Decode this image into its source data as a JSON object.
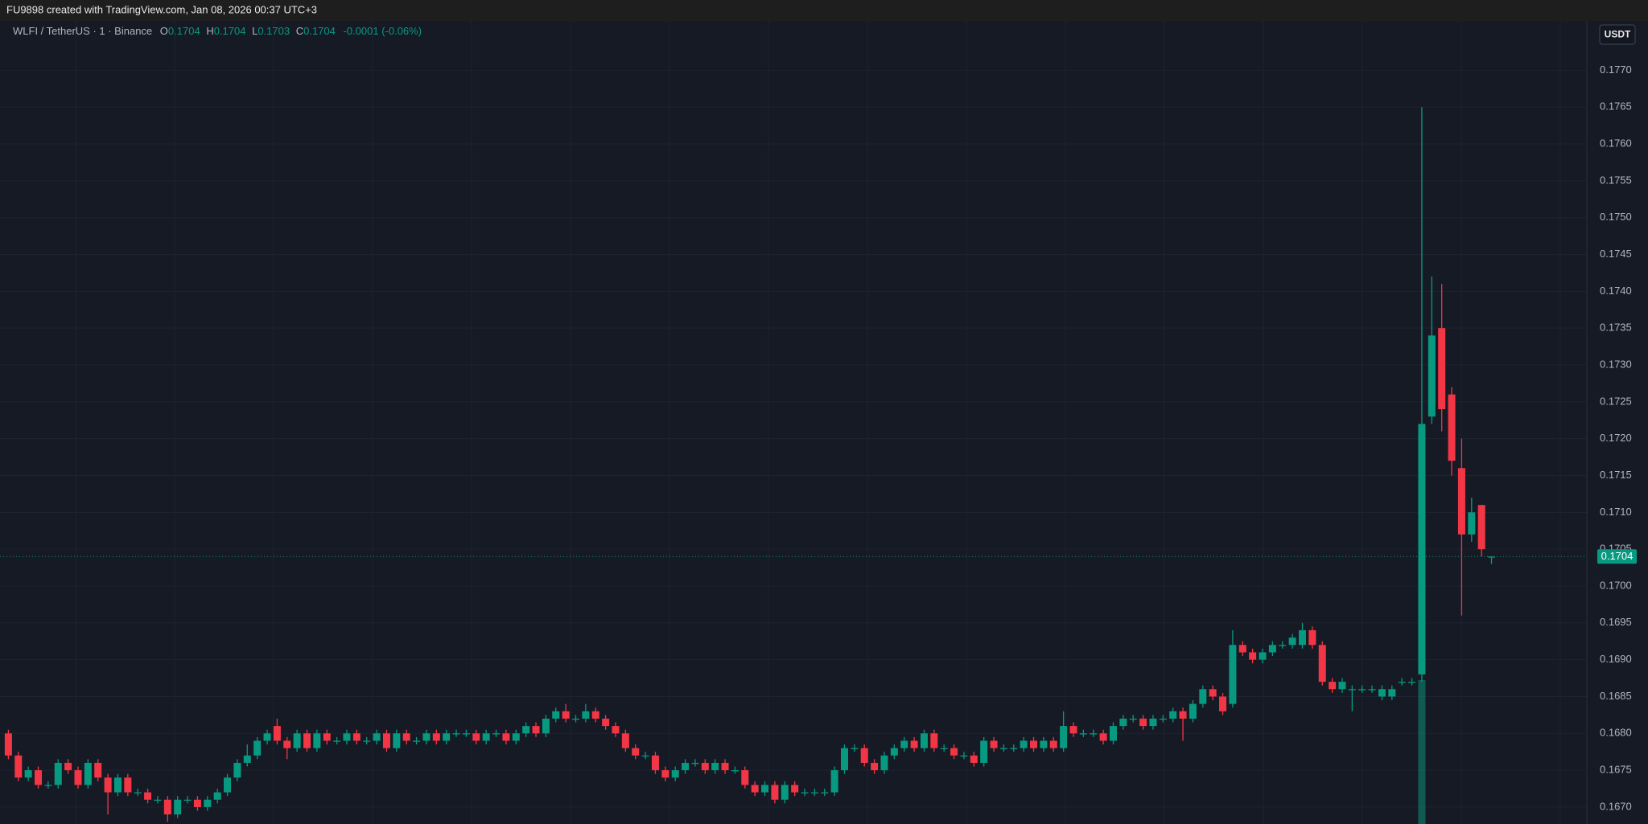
{
  "header": "FU9898 created with TradingView.com, Jan 08, 2026 00:37 UTC+3",
  "legend": {
    "symbol": "WLFI / TetherUS · 1 · Binance",
    "o_label": "O",
    "o": "0.1704",
    "h_label": "H",
    "h": "0.1704",
    "l_label": "L",
    "l": "0.1703",
    "c_label": "C",
    "c": "0.1704",
    "change": "-0.0001 (-0.06%)"
  },
  "currency_button": "USDT",
  "chart_data": {
    "type": "candlestick",
    "up_color": "#089981",
    "down_color": "#f23645",
    "grid": true,
    "ylim": [
      0.16677,
      0.17767
    ],
    "yticks": [
      {
        "value": 0.167,
        "label": "0.1670"
      },
      0.1675,
      {
        "value": 0.168,
        "label": "0.1680"
      },
      0.1685,
      {
        "value": 0.169,
        "label": "0.1690"
      },
      0.1695,
      {
        "value": 0.17,
        "label": "0.1700"
      },
      0.1705,
      {
        "value": 0.171,
        "label": "0.1710"
      },
      0.1715,
      {
        "value": 0.172,
        "label": "0.1720"
      },
      0.1725,
      {
        "value": 0.173,
        "label": "0.1730"
      },
      0.1735,
      {
        "value": 0.174,
        "label": "0.1740"
      },
      0.1745,
      {
        "value": 0.175,
        "label": "0.1750"
      },
      0.1755,
      {
        "value": 0.176,
        "label": "0.1760"
      },
      0.1765,
      {
        "value": 0.177,
        "label": "0.1770"
      }
    ],
    "last_price": 0.1704,
    "candles": [
      [
        0.168,
        0.16805,
        0.16765,
        0.1677
      ],
      [
        0.1677,
        0.16775,
        0.16735,
        0.1674
      ],
      [
        0.1674,
        0.16755,
        0.16735,
        0.1675
      ],
      [
        0.1675,
        0.16755,
        0.16725,
        0.1673
      ],
      [
        0.1673,
        0.16735,
        0.16725,
        0.1673
      ],
      [
        0.1673,
        0.16765,
        0.16725,
        0.1676
      ],
      [
        0.1676,
        0.16765,
        0.16745,
        0.1675
      ],
      [
        0.1675,
        0.16755,
        0.16725,
        0.1673
      ],
      [
        0.1673,
        0.16765,
        0.16725,
        0.1676
      ],
      [
        0.1676,
        0.16765,
        0.16735,
        0.1674
      ],
      [
        0.1674,
        0.16745,
        0.1669,
        0.1672
      ],
      [
        0.1672,
        0.16745,
        0.16715,
        0.1674
      ],
      [
        0.1674,
        0.16745,
        0.16715,
        0.1672
      ],
      [
        0.1672,
        0.16725,
        0.16715,
        0.1672
      ],
      [
        0.1672,
        0.16725,
        0.16705,
        0.1671
      ],
      [
        0.1671,
        0.16715,
        0.16705,
        0.1671
      ],
      [
        0.1671,
        0.16715,
        0.1668,
        0.1669
      ],
      [
        0.1669,
        0.16715,
        0.16685,
        0.1671
      ],
      [
        0.1671,
        0.16715,
        0.16705,
        0.1671
      ],
      [
        0.1671,
        0.16715,
        0.16695,
        0.167
      ],
      [
        0.167,
        0.16715,
        0.16695,
        0.1671
      ],
      [
        0.1671,
        0.16725,
        0.16705,
        0.1672
      ],
      [
        0.1672,
        0.16745,
        0.16715,
        0.1674
      ],
      [
        0.1674,
        0.16765,
        0.16735,
        0.1676
      ],
      [
        0.1676,
        0.16785,
        0.16755,
        0.1677
      ],
      [
        0.1677,
        0.16795,
        0.16765,
        0.1679
      ],
      [
        0.1679,
        0.16805,
        0.16785,
        0.168
      ],
      [
        0.1681,
        0.1682,
        0.16785,
        0.1679
      ],
      [
        0.1679,
        0.16795,
        0.16765,
        0.1678
      ],
      [
        0.1678,
        0.16805,
        0.16775,
        0.168
      ],
      [
        0.168,
        0.16805,
        0.16775,
        0.1678
      ],
      [
        0.1678,
        0.16805,
        0.16775,
        0.168
      ],
      [
        0.168,
        0.16805,
        0.16785,
        0.1679
      ],
      [
        0.1679,
        0.16795,
        0.16785,
        0.1679
      ],
      [
        0.1679,
        0.16805,
        0.16785,
        0.168
      ],
      [
        0.168,
        0.16805,
        0.16785,
        0.1679
      ],
      [
        0.1679,
        0.16795,
        0.16785,
        0.1679
      ],
      [
        0.1679,
        0.16805,
        0.16785,
        0.168
      ],
      [
        0.168,
        0.16805,
        0.16775,
        0.1678
      ],
      [
        0.1678,
        0.16805,
        0.16775,
        0.168
      ],
      [
        0.168,
        0.16805,
        0.16785,
        0.1679
      ],
      [
        0.1679,
        0.16795,
        0.16785,
        0.1679
      ],
      [
        0.1679,
        0.16805,
        0.16785,
        0.168
      ],
      [
        0.168,
        0.16805,
        0.16785,
        0.1679
      ],
      [
        0.1679,
        0.16805,
        0.16785,
        0.168
      ],
      [
        0.168,
        0.16805,
        0.16795,
        0.168
      ],
      [
        0.168,
        0.16805,
        0.16795,
        0.168
      ],
      [
        0.168,
        0.16805,
        0.16785,
        0.1679
      ],
      [
        0.1679,
        0.16805,
        0.16785,
        0.168
      ],
      [
        0.168,
        0.16805,
        0.16795,
        0.168
      ],
      [
        0.168,
        0.16805,
        0.16785,
        0.1679
      ],
      [
        0.1679,
        0.16805,
        0.16785,
        0.168
      ],
      [
        0.168,
        0.16815,
        0.16795,
        0.1681
      ],
      [
        0.1681,
        0.16815,
        0.16795,
        0.168
      ],
      [
        0.168,
        0.16825,
        0.16795,
        0.1682
      ],
      [
        0.1682,
        0.16835,
        0.16815,
        0.1683
      ],
      [
        0.1683,
        0.1684,
        0.16815,
        0.1682
      ],
      [
        0.1682,
        0.16825,
        0.16815,
        0.1682
      ],
      [
        0.1682,
        0.1684,
        0.16815,
        0.1683
      ],
      [
        0.1683,
        0.16835,
        0.16815,
        0.1682
      ],
      [
        0.1682,
        0.16825,
        0.16805,
        0.1681
      ],
      [
        0.1681,
        0.16815,
        0.16795,
        0.168
      ],
      [
        0.168,
        0.16805,
        0.16775,
        0.1678
      ],
      [
        0.1678,
        0.16785,
        0.16765,
        0.1677
      ],
      [
        0.1677,
        0.16775,
        0.16765,
        0.1677
      ],
      [
        0.1677,
        0.16775,
        0.16745,
        0.1675
      ],
      [
        0.1675,
        0.16755,
        0.16735,
        0.1674
      ],
      [
        0.1674,
        0.16755,
        0.16735,
        0.1675
      ],
      [
        0.1675,
        0.16765,
        0.16745,
        0.1676
      ],
      [
        0.1676,
        0.16765,
        0.16755,
        0.1676
      ],
      [
        0.1676,
        0.16765,
        0.16745,
        0.1675
      ],
      [
        0.1675,
        0.16765,
        0.16745,
        0.1676
      ],
      [
        0.1676,
        0.16765,
        0.16745,
        0.1675
      ],
      [
        0.1675,
        0.16755,
        0.16745,
        0.1675
      ],
      [
        0.1675,
        0.16755,
        0.16725,
        0.1673
      ],
      [
        0.1673,
        0.16735,
        0.16715,
        0.1672
      ],
      [
        0.1672,
        0.16735,
        0.16715,
        0.1673
      ],
      [
        0.1673,
        0.16735,
        0.16705,
        0.1671
      ],
      [
        0.1671,
        0.16735,
        0.16705,
        0.1673
      ],
      [
        0.1673,
        0.16735,
        0.16715,
        0.1672
      ],
      [
        0.1672,
        0.16725,
        0.16715,
        0.1672
      ],
      [
        0.1672,
        0.16725,
        0.16715,
        0.1672
      ],
      [
        0.1672,
        0.16725,
        0.16715,
        0.1672
      ],
      [
        0.1672,
        0.16755,
        0.16715,
        0.1675
      ],
      [
        0.1675,
        0.16785,
        0.16745,
        0.1678
      ],
      [
        0.1678,
        0.16785,
        0.16775,
        0.1678
      ],
      [
        0.1678,
        0.16785,
        0.16755,
        0.1676
      ],
      [
        0.1676,
        0.16765,
        0.16745,
        0.1675
      ],
      [
        0.1675,
        0.16775,
        0.16745,
        0.1677
      ],
      [
        0.1677,
        0.16785,
        0.16765,
        0.1678
      ],
      [
        0.1678,
        0.16795,
        0.16775,
        0.1679
      ],
      [
        0.1679,
        0.16795,
        0.16775,
        0.1678
      ],
      [
        0.1678,
        0.16805,
        0.16775,
        0.168
      ],
      [
        0.168,
        0.16805,
        0.16775,
        0.1678
      ],
      [
        0.1678,
        0.16785,
        0.16775,
        0.1678
      ],
      [
        0.1678,
        0.16785,
        0.16765,
        0.1677
      ],
      [
        0.1677,
        0.16775,
        0.16765,
        0.1677
      ],
      [
        0.1677,
        0.16775,
        0.16755,
        0.1676
      ],
      [
        0.1676,
        0.16795,
        0.16755,
        0.1679
      ],
      [
        0.1679,
        0.16795,
        0.16775,
        0.1678
      ],
      [
        0.1678,
        0.16785,
        0.16775,
        0.1678
      ],
      [
        0.1678,
        0.16785,
        0.16775,
        0.1678
      ],
      [
        0.1678,
        0.16795,
        0.16775,
        0.1679
      ],
      [
        0.1679,
        0.16795,
        0.16775,
        0.1678
      ],
      [
        0.1678,
        0.16795,
        0.16775,
        0.1679
      ],
      [
        0.1679,
        0.16795,
        0.16775,
        0.1678
      ],
      [
        0.1678,
        0.1683,
        0.16775,
        0.1681
      ],
      [
        0.1681,
        0.16815,
        0.16795,
        0.168
      ],
      [
        0.168,
        0.16805,
        0.16795,
        0.168
      ],
      [
        0.168,
        0.16805,
        0.16795,
        0.168
      ],
      [
        0.168,
        0.16805,
        0.16785,
        0.1679
      ],
      [
        0.1679,
        0.16815,
        0.16785,
        0.1681
      ],
      [
        0.1681,
        0.16825,
        0.16805,
        0.1682
      ],
      [
        0.1682,
        0.16825,
        0.16815,
        0.1682
      ],
      [
        0.1682,
        0.16825,
        0.16805,
        0.1681
      ],
      [
        0.1681,
        0.16825,
        0.16805,
        0.1682
      ],
      [
        0.1682,
        0.16825,
        0.16815,
        0.1682
      ],
      [
        0.1682,
        0.16835,
        0.16815,
        0.1683
      ],
      [
        0.1683,
        0.16835,
        0.1679,
        0.1682
      ],
      [
        0.1682,
        0.16845,
        0.16815,
        0.1684
      ],
      [
        0.1684,
        0.16865,
        0.16835,
        0.1686
      ],
      [
        0.1686,
        0.16865,
        0.16845,
        0.1685
      ],
      [
        0.1685,
        0.16855,
        0.16825,
        0.1683
      ],
      [
        0.1684,
        0.1694,
        0.16835,
        0.1692
      ],
      [
        0.1692,
        0.16925,
        0.16905,
        0.1691
      ],
      [
        0.1691,
        0.16915,
        0.16895,
        0.169
      ],
      [
        0.169,
        0.16915,
        0.16895,
        0.1691
      ],
      [
        0.1691,
        0.16925,
        0.16905,
        0.1692
      ],
      [
        0.1692,
        0.16925,
        0.16915,
        0.1692
      ],
      [
        0.1692,
        0.16935,
        0.16915,
        0.1693
      ],
      [
        0.1692,
        0.1695,
        0.16915,
        0.1694
      ],
      [
        0.1694,
        0.16945,
        0.16915,
        0.1692
      ],
      [
        0.1692,
        0.16925,
        0.16865,
        0.1687
      ],
      [
        0.1687,
        0.16875,
        0.16855,
        0.1686
      ],
      [
        0.1686,
        0.16875,
        0.16855,
        0.1687
      ],
      [
        0.1686,
        0.16865,
        0.1683,
        0.1686
      ],
      [
        0.1686,
        0.16865,
        0.16855,
        0.1686
      ],
      [
        0.1686,
        0.16865,
        0.16855,
        0.1686
      ],
      [
        0.1685,
        0.16865,
        0.16845,
        0.1686
      ],
      [
        0.1685,
        0.16865,
        0.16845,
        0.1686
      ],
      [
        0.1687,
        0.16875,
        0.16865,
        0.1687
      ],
      [
        0.1687,
        0.16875,
        0.16865,
        0.1687
      ],
      [
        0.1688,
        0.1765,
        0.1687,
        0.1722
      ],
      [
        0.1723,
        0.1742,
        0.1722,
        0.1734
      ],
      [
        0.1735,
        0.1741,
        0.1721,
        0.1724
      ],
      [
        0.1726,
        0.1727,
        0.1715,
        0.1717
      ],
      [
        0.1716,
        0.172,
        0.1696,
        0.1707
      ],
      [
        0.1707,
        0.1712,
        0.1706,
        0.171
      ],
      [
        0.1711,
        0.1711,
        0.1704,
        0.1705
      ],
      [
        0.1704,
        0.1704,
        0.1703,
        0.1704
      ]
    ]
  }
}
